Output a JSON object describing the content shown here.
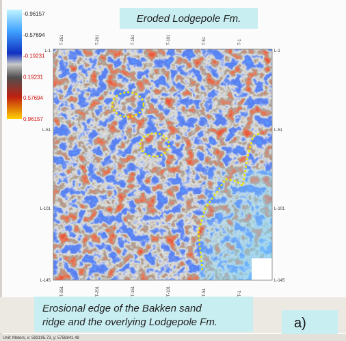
{
  "colorbar": {
    "labels": [
      "-0.96157",
      "-0.57694",
      "-0.19231",
      "0.19231",
      "0.57694",
      "0.96157"
    ]
  },
  "map": {
    "top_ticks": [
      "T-251",
      "T-201",
      "T-151",
      "T-101",
      "T-51",
      "T-1"
    ],
    "bottom_ticks": [
      "T-251",
      "T-201",
      "T-151",
      "T-101",
      "T-51",
      "T-1"
    ],
    "left_ticks": [
      "L-1",
      "L-51",
      "L-101",
      "L-145"
    ],
    "right_ticks": [
      "L-1",
      "L-51",
      "L-101",
      "L-145"
    ]
  },
  "annotations": {
    "top": "Eroded Lodgepole Fm.",
    "bottom_lines": [
      "Erosional edge of the Bakken sand",
      "ridge and the overlying Lodgepole Fm."
    ],
    "panel": "a)"
  },
  "status_bar": "Unit: Meters, x: 593195.73, y: 5758841.48"
}
